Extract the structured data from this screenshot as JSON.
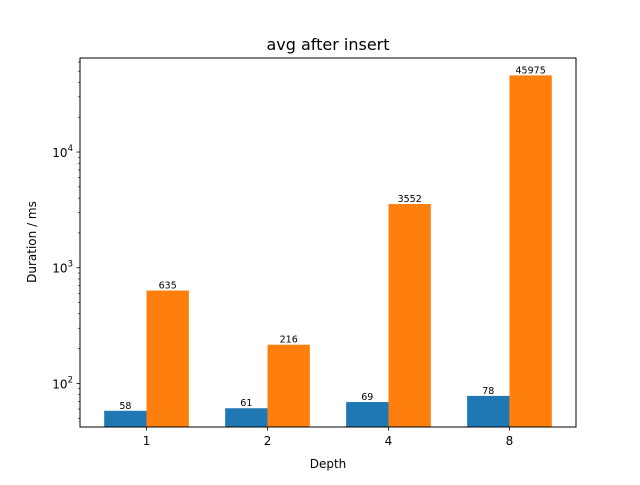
{
  "chart_data": {
    "type": "bar",
    "title": "avg after insert",
    "xlabel": "Depth",
    "ylabel": "Duration / ms",
    "yscale": "log",
    "ylim": [
      42,
      65000
    ],
    "categories": [
      "1",
      "2",
      "4",
      "8"
    ],
    "series": [
      {
        "values": [
          58,
          61,
          69,
          78
        ],
        "color": "#1f77b4"
      },
      {
        "values": [
          635,
          216,
          3552,
          45975
        ],
        "color": "#ff7f0e"
      }
    ],
    "y_major_ticks": [
      {
        "value": 100,
        "base": "10",
        "exp": "2"
      },
      {
        "value": 1000,
        "base": "10",
        "exp": "3"
      },
      {
        "value": 10000,
        "base": "10",
        "exp": "4"
      }
    ],
    "grid": false,
    "legend": "none"
  }
}
